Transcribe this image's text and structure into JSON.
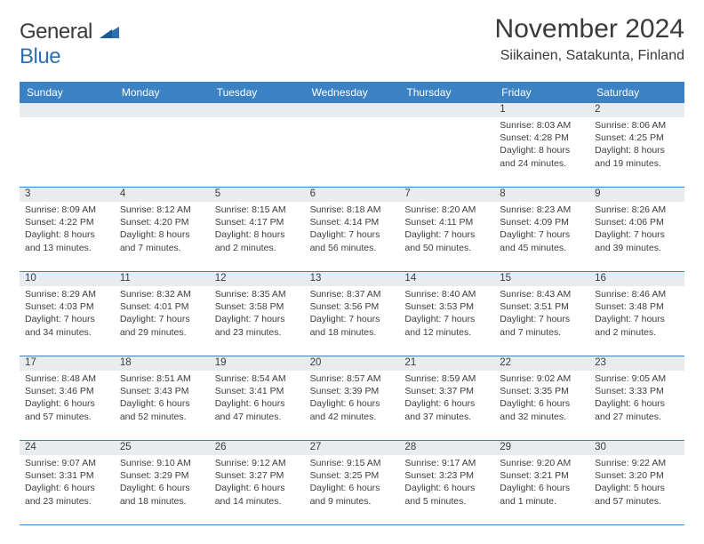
{
  "logo": {
    "text1": "General",
    "text2": "Blue",
    "triangle_color": "#2f6fb0"
  },
  "title": "November 2024",
  "location": "Siikainen, Satakunta, Finland",
  "colors": {
    "header_bg": "#3b82c4",
    "header_text": "#ffffff",
    "daynum_bg": "#e8ecef",
    "border": "#3b82c4",
    "text": "#3d3d3d"
  },
  "day_names": [
    "Sunday",
    "Monday",
    "Tuesday",
    "Wednesday",
    "Thursday",
    "Friday",
    "Saturday"
  ],
  "weeks": [
    [
      {
        "n": "",
        "lines": []
      },
      {
        "n": "",
        "lines": []
      },
      {
        "n": "",
        "lines": []
      },
      {
        "n": "",
        "lines": []
      },
      {
        "n": "",
        "lines": []
      },
      {
        "n": "1",
        "lines": [
          "Sunrise: 8:03 AM",
          "Sunset: 4:28 PM",
          "Daylight: 8 hours",
          "and 24 minutes."
        ]
      },
      {
        "n": "2",
        "lines": [
          "Sunrise: 8:06 AM",
          "Sunset: 4:25 PM",
          "Daylight: 8 hours",
          "and 19 minutes."
        ]
      }
    ],
    [
      {
        "n": "3",
        "lines": [
          "Sunrise: 8:09 AM",
          "Sunset: 4:22 PM",
          "Daylight: 8 hours",
          "and 13 minutes."
        ]
      },
      {
        "n": "4",
        "lines": [
          "Sunrise: 8:12 AM",
          "Sunset: 4:20 PM",
          "Daylight: 8 hours",
          "and 7 minutes."
        ]
      },
      {
        "n": "5",
        "lines": [
          "Sunrise: 8:15 AM",
          "Sunset: 4:17 PM",
          "Daylight: 8 hours",
          "and 2 minutes."
        ]
      },
      {
        "n": "6",
        "lines": [
          "Sunrise: 8:18 AM",
          "Sunset: 4:14 PM",
          "Daylight: 7 hours",
          "and 56 minutes."
        ]
      },
      {
        "n": "7",
        "lines": [
          "Sunrise: 8:20 AM",
          "Sunset: 4:11 PM",
          "Daylight: 7 hours",
          "and 50 minutes."
        ]
      },
      {
        "n": "8",
        "lines": [
          "Sunrise: 8:23 AM",
          "Sunset: 4:09 PM",
          "Daylight: 7 hours",
          "and 45 minutes."
        ]
      },
      {
        "n": "9",
        "lines": [
          "Sunrise: 8:26 AM",
          "Sunset: 4:06 PM",
          "Daylight: 7 hours",
          "and 39 minutes."
        ]
      }
    ],
    [
      {
        "n": "10",
        "lines": [
          "Sunrise: 8:29 AM",
          "Sunset: 4:03 PM",
          "Daylight: 7 hours",
          "and 34 minutes."
        ]
      },
      {
        "n": "11",
        "lines": [
          "Sunrise: 8:32 AM",
          "Sunset: 4:01 PM",
          "Daylight: 7 hours",
          "and 29 minutes."
        ]
      },
      {
        "n": "12",
        "lines": [
          "Sunrise: 8:35 AM",
          "Sunset: 3:58 PM",
          "Daylight: 7 hours",
          "and 23 minutes."
        ]
      },
      {
        "n": "13",
        "lines": [
          "Sunrise: 8:37 AM",
          "Sunset: 3:56 PM",
          "Daylight: 7 hours",
          "and 18 minutes."
        ]
      },
      {
        "n": "14",
        "lines": [
          "Sunrise: 8:40 AM",
          "Sunset: 3:53 PM",
          "Daylight: 7 hours",
          "and 12 minutes."
        ]
      },
      {
        "n": "15",
        "lines": [
          "Sunrise: 8:43 AM",
          "Sunset: 3:51 PM",
          "Daylight: 7 hours",
          "and 7 minutes."
        ]
      },
      {
        "n": "16",
        "lines": [
          "Sunrise: 8:46 AM",
          "Sunset: 3:48 PM",
          "Daylight: 7 hours",
          "and 2 minutes."
        ]
      }
    ],
    [
      {
        "n": "17",
        "lines": [
          "Sunrise: 8:48 AM",
          "Sunset: 3:46 PM",
          "Daylight: 6 hours",
          "and 57 minutes."
        ]
      },
      {
        "n": "18",
        "lines": [
          "Sunrise: 8:51 AM",
          "Sunset: 3:43 PM",
          "Daylight: 6 hours",
          "and 52 minutes."
        ]
      },
      {
        "n": "19",
        "lines": [
          "Sunrise: 8:54 AM",
          "Sunset: 3:41 PM",
          "Daylight: 6 hours",
          "and 47 minutes."
        ]
      },
      {
        "n": "20",
        "lines": [
          "Sunrise: 8:57 AM",
          "Sunset: 3:39 PM",
          "Daylight: 6 hours",
          "and 42 minutes."
        ]
      },
      {
        "n": "21",
        "lines": [
          "Sunrise: 8:59 AM",
          "Sunset: 3:37 PM",
          "Daylight: 6 hours",
          "and 37 minutes."
        ]
      },
      {
        "n": "22",
        "lines": [
          "Sunrise: 9:02 AM",
          "Sunset: 3:35 PM",
          "Daylight: 6 hours",
          "and 32 minutes."
        ]
      },
      {
        "n": "23",
        "lines": [
          "Sunrise: 9:05 AM",
          "Sunset: 3:33 PM",
          "Daylight: 6 hours",
          "and 27 minutes."
        ]
      }
    ],
    [
      {
        "n": "24",
        "lines": [
          "Sunrise: 9:07 AM",
          "Sunset: 3:31 PM",
          "Daylight: 6 hours",
          "and 23 minutes."
        ]
      },
      {
        "n": "25",
        "lines": [
          "Sunrise: 9:10 AM",
          "Sunset: 3:29 PM",
          "Daylight: 6 hours",
          "and 18 minutes."
        ]
      },
      {
        "n": "26",
        "lines": [
          "Sunrise: 9:12 AM",
          "Sunset: 3:27 PM",
          "Daylight: 6 hours",
          "and 14 minutes."
        ]
      },
      {
        "n": "27",
        "lines": [
          "Sunrise: 9:15 AM",
          "Sunset: 3:25 PM",
          "Daylight: 6 hours",
          "and 9 minutes."
        ]
      },
      {
        "n": "28",
        "lines": [
          "Sunrise: 9:17 AM",
          "Sunset: 3:23 PM",
          "Daylight: 6 hours",
          "and 5 minutes."
        ]
      },
      {
        "n": "29",
        "lines": [
          "Sunrise: 9:20 AM",
          "Sunset: 3:21 PM",
          "Daylight: 6 hours",
          "and 1 minute."
        ]
      },
      {
        "n": "30",
        "lines": [
          "Sunrise: 9:22 AM",
          "Sunset: 3:20 PM",
          "Daylight: 5 hours",
          "and 57 minutes."
        ]
      }
    ]
  ]
}
